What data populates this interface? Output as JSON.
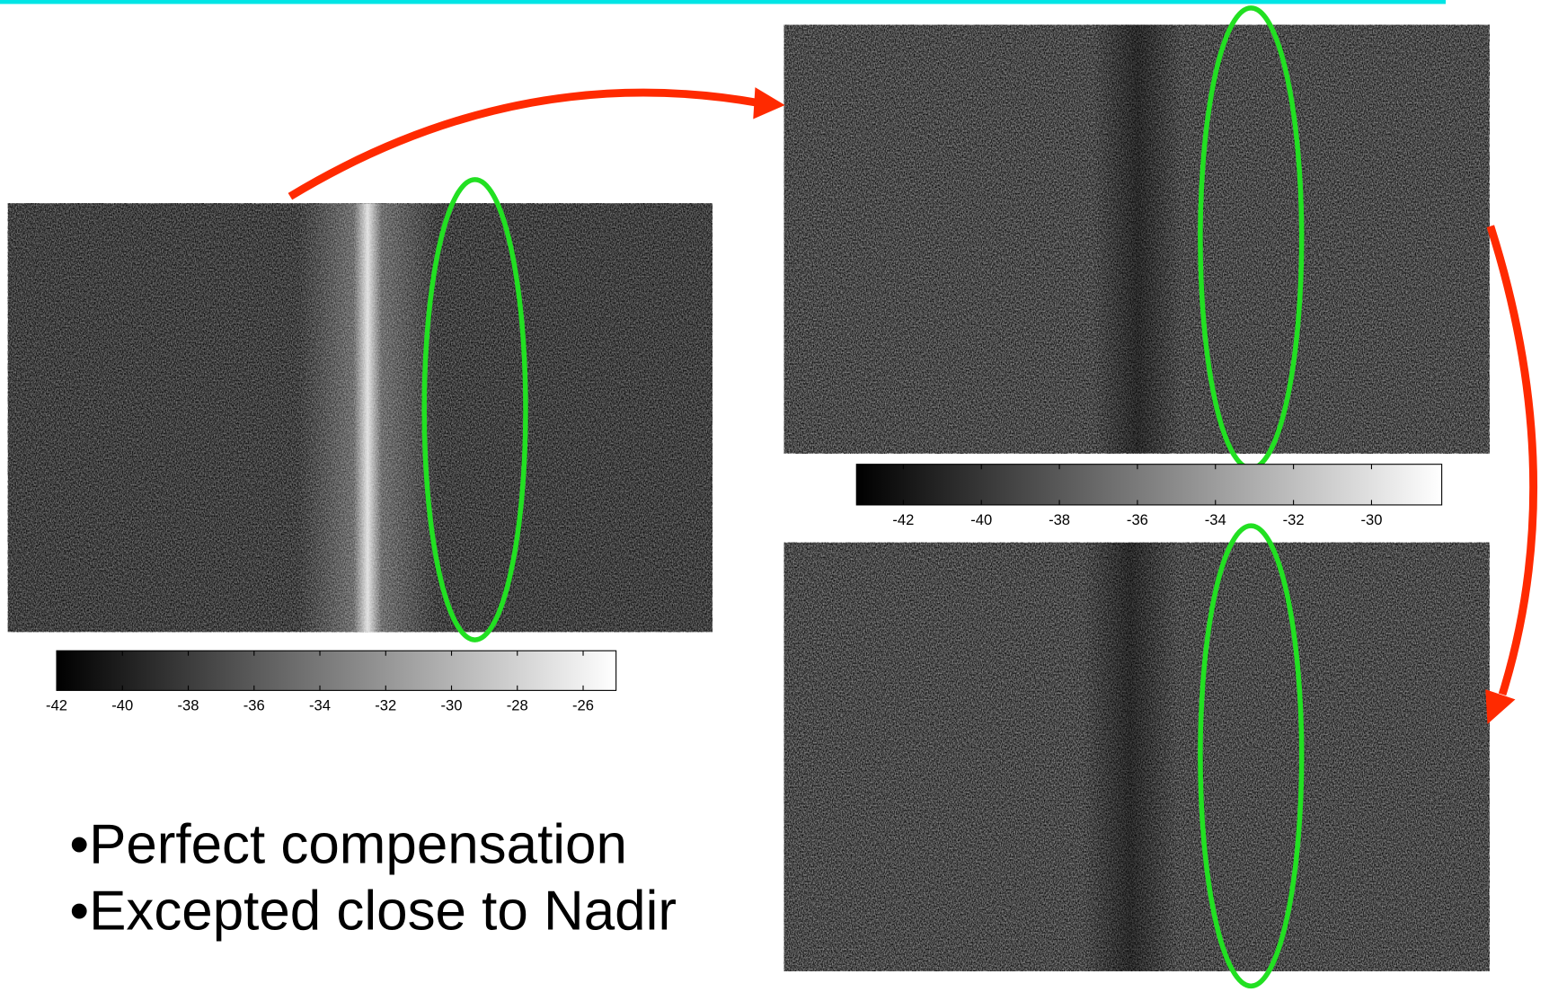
{
  "colorbars": [
    {
      "lim": [
        -42,
        -25
      ],
      "ticks": [
        -42,
        -40,
        -38,
        -36,
        -34,
        -32,
        -30,
        -28,
        -26
      ]
    },
    {
      "lim": [
        -43.2,
        -28.2
      ],
      "ticks": [
        -42,
        -40,
        -38,
        -36,
        -34,
        -32,
        -30
      ]
    }
  ],
  "bullets": [
    "•Perfect compensation",
    "•Excepted close to Nadir"
  ]
}
